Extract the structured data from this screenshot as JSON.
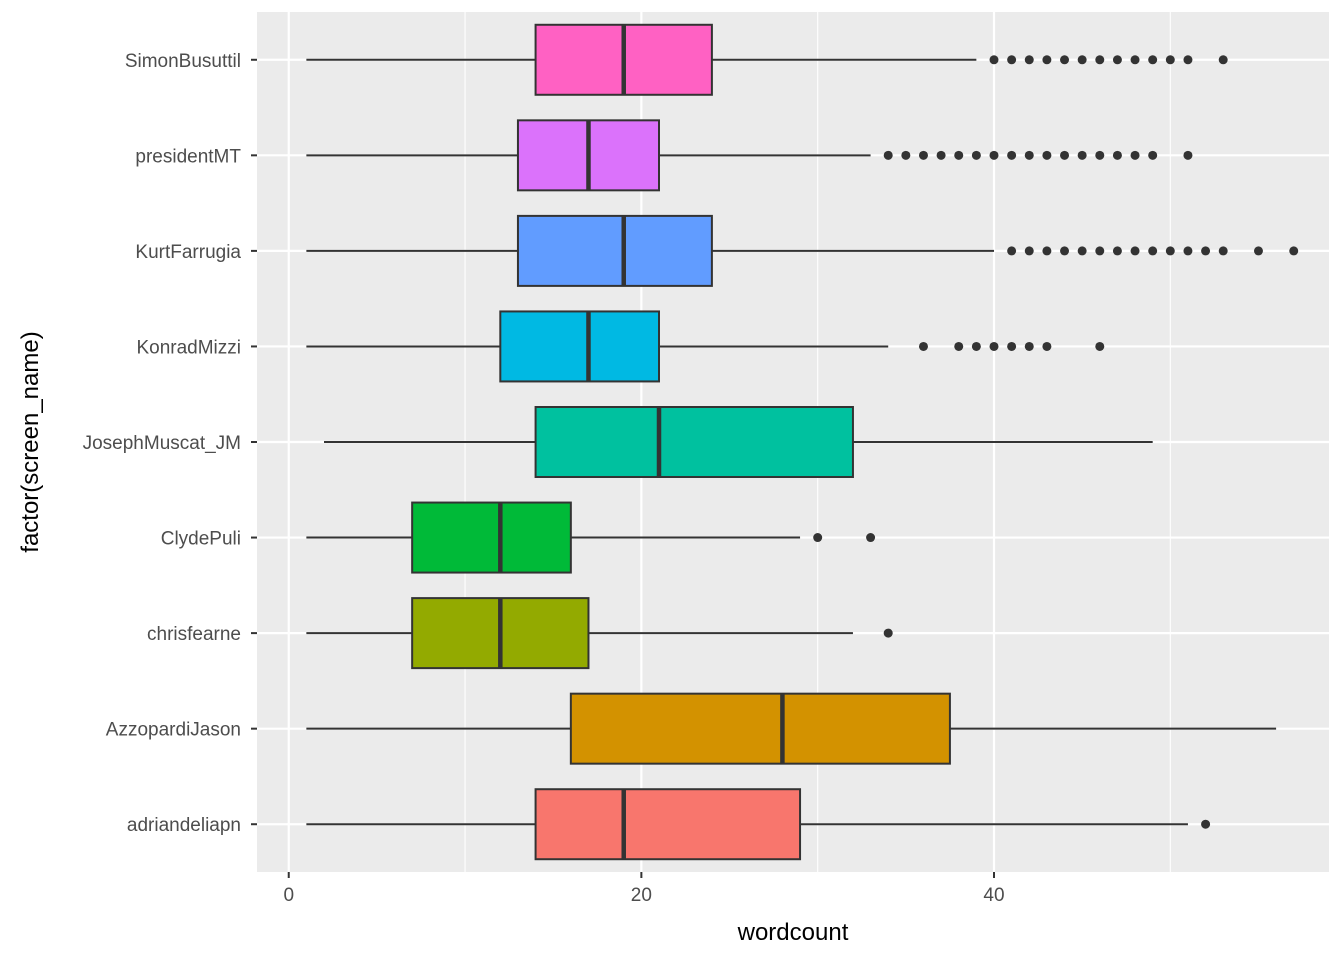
{
  "chart_data": {
    "type": "boxplot",
    "orientation": "horizontal",
    "xlabel": "wordcount",
    "ylabel": "factor(screen_name)",
    "xlim": [
      -1.8,
      59
    ],
    "x_ticks": [
      0,
      20,
      40
    ],
    "x_minor_ticks": [
      10,
      30,
      50
    ],
    "grid": true,
    "legend": "none",
    "panel_background": "#EBEBEB",
    "grid_color": "#FFFFFF",
    "box_border_color": "#333333",
    "categories": [
      "adriandeliapn",
      "AzzopardiJason",
      "chrisfearne",
      "ClydePuli",
      "JosephMuscat_JM",
      "KonradMizzi",
      "KurtFarrugia",
      "presidentMT",
      "SimonBusuttil"
    ],
    "series": [
      {
        "name": "adriandeliapn",
        "color": "#F8766D",
        "whisker_low": 1,
        "q1": 14,
        "median": 19,
        "q3": 29,
        "whisker_high": 51,
        "outliers": [
          52
        ]
      },
      {
        "name": "AzzopardiJason",
        "color": "#D39200",
        "whisker_low": 1,
        "q1": 16,
        "median": 28,
        "q3": 37.5,
        "whisker_high": 56,
        "outliers": []
      },
      {
        "name": "chrisfearne",
        "color": "#93AA00",
        "whisker_low": 1,
        "q1": 7,
        "median": 12,
        "q3": 17,
        "whisker_high": 32,
        "outliers": [
          34
        ]
      },
      {
        "name": "ClydePuli",
        "color": "#00BA38",
        "whisker_low": 1,
        "q1": 7,
        "median": 12,
        "q3": 16,
        "whisker_high": 29,
        "outliers": [
          30,
          33
        ]
      },
      {
        "name": "JosephMuscat_JM",
        "color": "#00C19F",
        "whisker_low": 2,
        "q1": 14,
        "median": 21,
        "q3": 32,
        "whisker_high": 49,
        "outliers": []
      },
      {
        "name": "KonradMizzi",
        "color": "#00B9E3",
        "whisker_low": 1,
        "q1": 12,
        "median": 17,
        "q3": 21,
        "whisker_high": 34,
        "outliers": [
          36,
          38,
          39,
          40,
          41,
          42,
          43,
          46
        ]
      },
      {
        "name": "KurtFarrugia",
        "color": "#619CFF",
        "whisker_low": 1,
        "q1": 13,
        "median": 19,
        "q3": 24,
        "whisker_high": 40,
        "outliers": [
          41,
          42,
          43,
          44,
          45,
          46,
          47,
          48,
          49,
          50,
          51,
          52,
          53,
          55,
          57
        ]
      },
      {
        "name": "presidentMT",
        "color": "#DB72FB",
        "whisker_low": 1,
        "q1": 13,
        "median": 17,
        "q3": 21,
        "whisker_high": 33,
        "outliers": [
          34,
          35,
          36,
          37,
          38,
          39,
          40,
          41,
          42,
          43,
          44,
          45,
          46,
          47,
          48,
          49,
          51
        ]
      },
      {
        "name": "SimonBusuttil",
        "color": "#FF61C3",
        "whisker_low": 1,
        "q1": 14,
        "median": 19,
        "q3": 24,
        "whisker_high": 39,
        "outliers": [
          40,
          41,
          42,
          43,
          44,
          45,
          46,
          47,
          48,
          49,
          50,
          51,
          53
        ]
      }
    ]
  }
}
